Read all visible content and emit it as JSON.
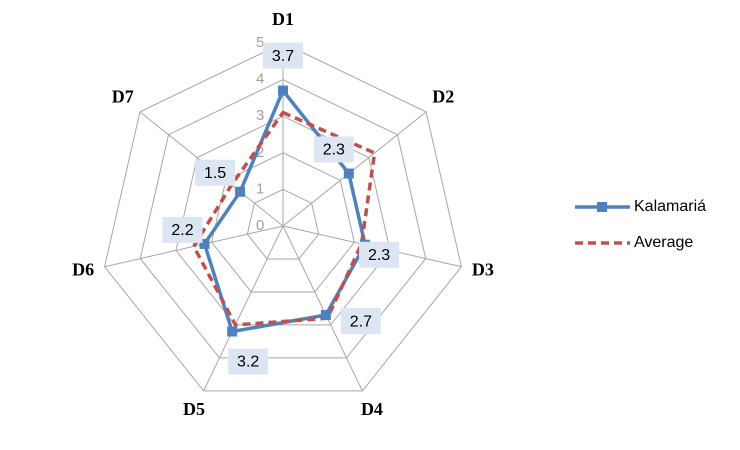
{
  "chart_data": {
    "type": "radar",
    "categories": [
      "D1",
      "D2",
      "D3",
      "D4",
      "D5",
      "D6",
      "D7"
    ],
    "ylim": [
      0,
      5
    ],
    "yticks": [
      0,
      1,
      2,
      3,
      4,
      5
    ],
    "series": [
      {
        "name": "Kalamariá",
        "color": "#4f81bd",
        "values": [
          3.7,
          2.3,
          2.3,
          2.7,
          3.2,
          2.2,
          1.5
        ]
      },
      {
        "name": "Average",
        "color": "#c0504d",
        "values": [
          3.1,
          3.2,
          2.2,
          2.8,
          3.0,
          2.5,
          1.8
        ]
      }
    ]
  }
}
